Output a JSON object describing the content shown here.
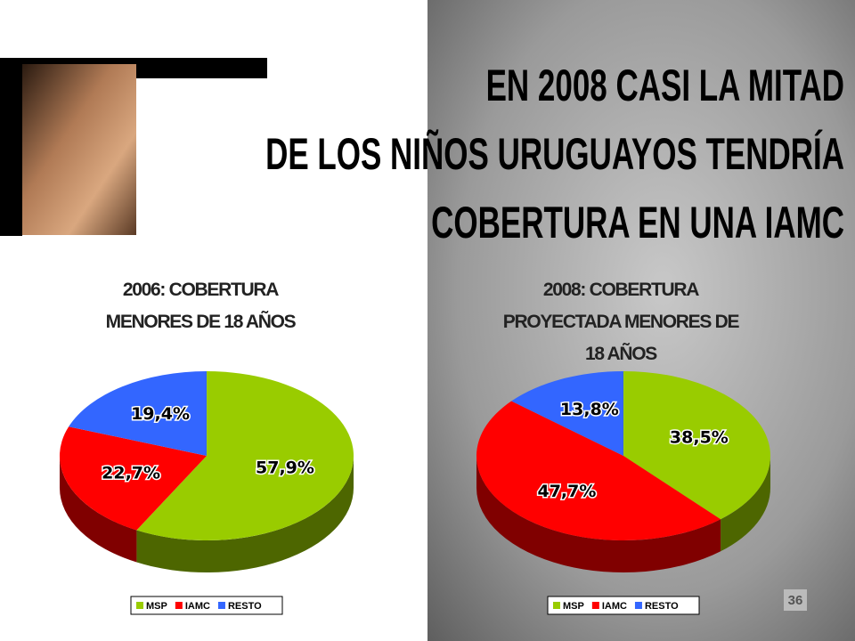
{
  "slide": {
    "title_lines": [
      "EN 2008 CASI LA MITAD",
      "DE LOS NIÑOS URUGUAYOS TENDRÍA",
      "COBERTURA EN UNA IAMC"
    ],
    "page_number": 36
  },
  "chart_data": [
    {
      "type": "pie",
      "title": "2006: COBERTURA MENORES DE 18 AÑOS",
      "categories": [
        "MSP",
        "IAMC",
        "RESTO"
      ],
      "values": [
        57.9,
        22.7,
        19.4
      ],
      "value_labels": [
        "57,9%",
        "22,7%",
        "19,4%"
      ],
      "colors": [
        "#99cc00",
        "#ff0000",
        "#3366ff"
      ]
    },
    {
      "type": "pie",
      "title": "2008: COBERTURA PROYECTADA MENORES DE 18 AÑOS",
      "categories": [
        "MSP",
        "IAMC",
        "RESTO"
      ],
      "values": [
        38.5,
        47.7,
        13.8
      ],
      "value_labels": [
        "38,5%",
        "47,7%",
        "13,8%"
      ],
      "colors": [
        "#99cc00",
        "#ff0000",
        "#3366ff"
      ]
    }
  ]
}
